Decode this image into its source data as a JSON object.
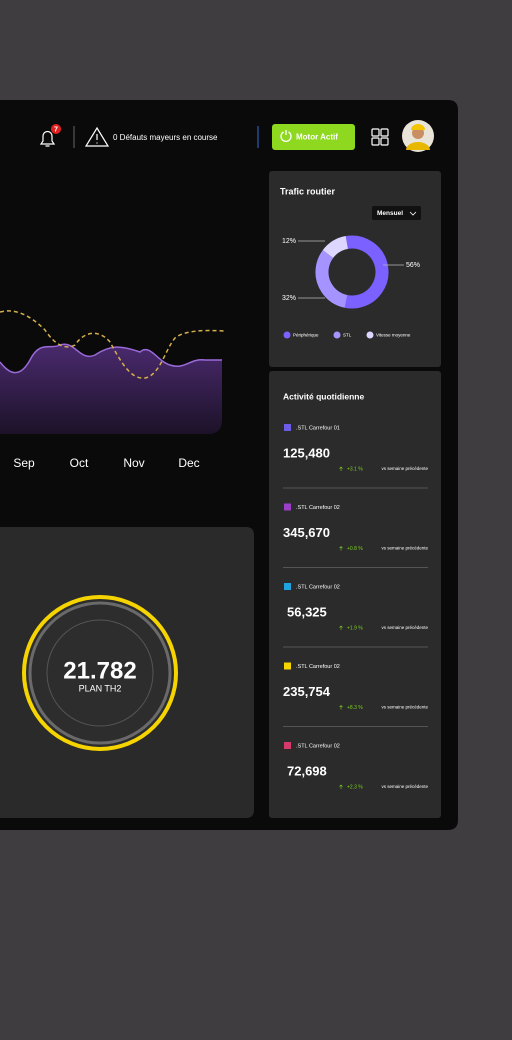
{
  "header": {
    "notification_count": "7",
    "defects": "0 Défauts mayeurs en course",
    "motor_button": "Motor Actif"
  },
  "chart": {
    "months": [
      "Sep",
      "Oct",
      "Nov",
      "Dec"
    ]
  },
  "traffic": {
    "type": "pie",
    "title": "Trafic routier",
    "period": "Mensuel",
    "categories": [
      "Périphérique",
      "STL",
      "Vitesse moyenne"
    ],
    "values": [
      56,
      32,
      12
    ],
    "value_labels": [
      "56%",
      "32%",
      "12%"
    ],
    "colors": [
      "#7b61ff",
      "#a594ff",
      "#ddd6ff"
    ]
  },
  "gauge": {
    "value": "21.782",
    "label": "PLAN TH2"
  },
  "activity": {
    "title": "Activité quotidienne",
    "items": [
      {
        "label": ".STL Carrefour 01",
        "color": "#6c5ce7",
        "value": "125,480",
        "change": "+3.1 %",
        "comparison": "vs semaine précédente"
      },
      {
        "label": ".STL Carrefour 02",
        "color": "#9b3fc9",
        "value": "345,670",
        "change": "+0.8 %",
        "comparison": "vs semaine précédente"
      },
      {
        "label": ".STL Carrefour 02",
        "color": "#1fa3e0",
        "value": "56,325",
        "change": "+1.9 %",
        "comparison": "vs semaine précédente"
      },
      {
        "label": ".STL Carrefour 02",
        "color": "#f5d400",
        "value": "235,754",
        "change": "+8.3 %",
        "comparison": "vs semaine précédente"
      },
      {
        "label": ".STL Carrefour 02",
        "color": "#d63a6a",
        "value": "72,698",
        "change": "+2.3 %",
        "comparison": "vs semaine précédente"
      }
    ]
  }
}
